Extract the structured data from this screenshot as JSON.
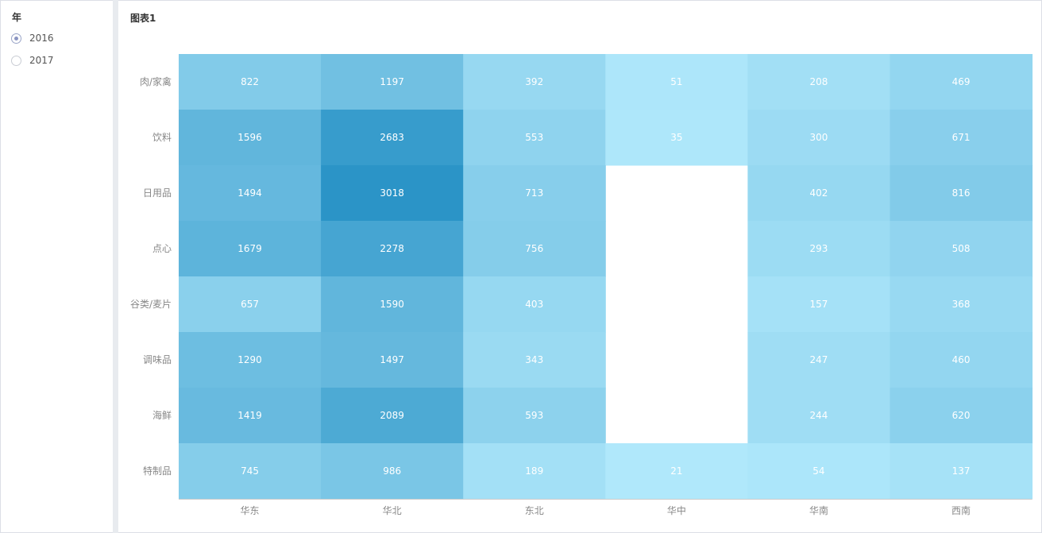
{
  "filter": {
    "title": "年",
    "options": [
      {
        "label": "2016",
        "checked": true
      },
      {
        "label": "2017",
        "checked": false
      }
    ]
  },
  "chart": {
    "title": "图表1"
  },
  "chart_data": {
    "type": "heatmap",
    "title": "图表1",
    "x": [
      "华东",
      "华北",
      "东北",
      "华中",
      "华南",
      "西南"
    ],
    "y": [
      "肉/家禽",
      "饮料",
      "日用品",
      "点心",
      "谷类/麦片",
      "调味品",
      "海鲜",
      "特制品"
    ],
    "values": [
      [
        822,
        1197,
        392,
        51,
        208,
        469
      ],
      [
        1596,
        2683,
        553,
        35,
        300,
        671
      ],
      [
        1494,
        3018,
        713,
        null,
        402,
        816
      ],
      [
        1679,
        2278,
        756,
        null,
        293,
        508
      ],
      [
        657,
        1590,
        403,
        null,
        157,
        368
      ],
      [
        1290,
        1497,
        343,
        null,
        247,
        460
      ],
      [
        1419,
        2089,
        593,
        null,
        244,
        620
      ],
      [
        745,
        986,
        189,
        21,
        54,
        137
      ]
    ],
    "colors": {
      "low": "#b0e8fb",
      "high": "#2b94c7",
      "text": "#ffffff",
      "axis_text": "#888888"
    }
  }
}
